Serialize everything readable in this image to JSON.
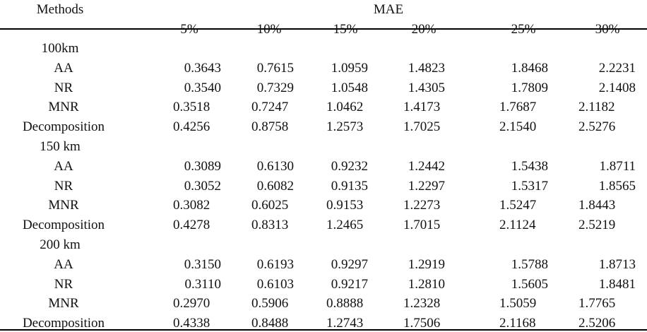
{
  "header": {
    "methods_label": "Methods",
    "metric_label": "MAE"
  },
  "columns": [
    "5%",
    "10%",
    "15%",
    "20%",
    "25%",
    "30%"
  ],
  "groups": [
    {
      "label": "100km",
      "rows": [
        {
          "method": "AA",
          "values": [
            "0.3643",
            "0.7615",
            "1.0959",
            "1.4823",
            "1.8468",
            "2.2231"
          ]
        },
        {
          "method": "NR",
          "values": [
            "0.3540",
            "0.7329",
            "1.0548",
            "1.4305",
            "1.7809",
            "2.1408"
          ]
        },
        {
          "method": "MNR",
          "values": [
            "0.3518",
            "0.7247",
            "1.0462",
            "1.4173",
            "1.7687",
            "2.1182"
          ]
        },
        {
          "method": "Decomposition",
          "values": [
            "0.4256",
            "0.8758",
            "1.2573",
            "1.7025",
            "2.1540",
            "2.5276"
          ]
        }
      ]
    },
    {
      "label": "150 km",
      "rows": [
        {
          "method": "AA",
          "values": [
            "0.3089",
            "0.6130",
            "0.9232",
            "1.2442",
            "1.5438",
            "1.8711"
          ]
        },
        {
          "method": "NR",
          "values": [
            "0.3052",
            "0.6082",
            "0.9135",
            "1.2297",
            "1.5317",
            "1.8565"
          ]
        },
        {
          "method": "MNR",
          "values": [
            "0.3082",
            "0.6025",
            "0.9153",
            "1.2273",
            "1.5247",
            "1.8443"
          ]
        },
        {
          "method": "Decomposition",
          "values": [
            "0.4278",
            "0.8313",
            "1.2465",
            "1.7015",
            "2.1124",
            "2.5219"
          ]
        }
      ]
    },
    {
      "label": "200 km",
      "rows": [
        {
          "method": "AA",
          "values": [
            "0.3150",
            "0.6193",
            "0.9297",
            "1.2919",
            "1.5788",
            "1.8713"
          ]
        },
        {
          "method": "NR",
          "values": [
            "0.3110",
            "0.6103",
            "0.9217",
            "1.2810",
            "1.5605",
            "1.8481"
          ]
        },
        {
          "method": "MNR",
          "values": [
            "0.2970",
            "0.5906",
            "0.8888",
            "1.2328",
            "1.5059",
            "1.7765"
          ]
        },
        {
          "method": "Decomposition",
          "values": [
            "0.4338",
            "0.8488",
            "1.2743",
            "1.7506",
            "2.1168",
            "2.5206"
          ]
        }
      ]
    }
  ]
}
